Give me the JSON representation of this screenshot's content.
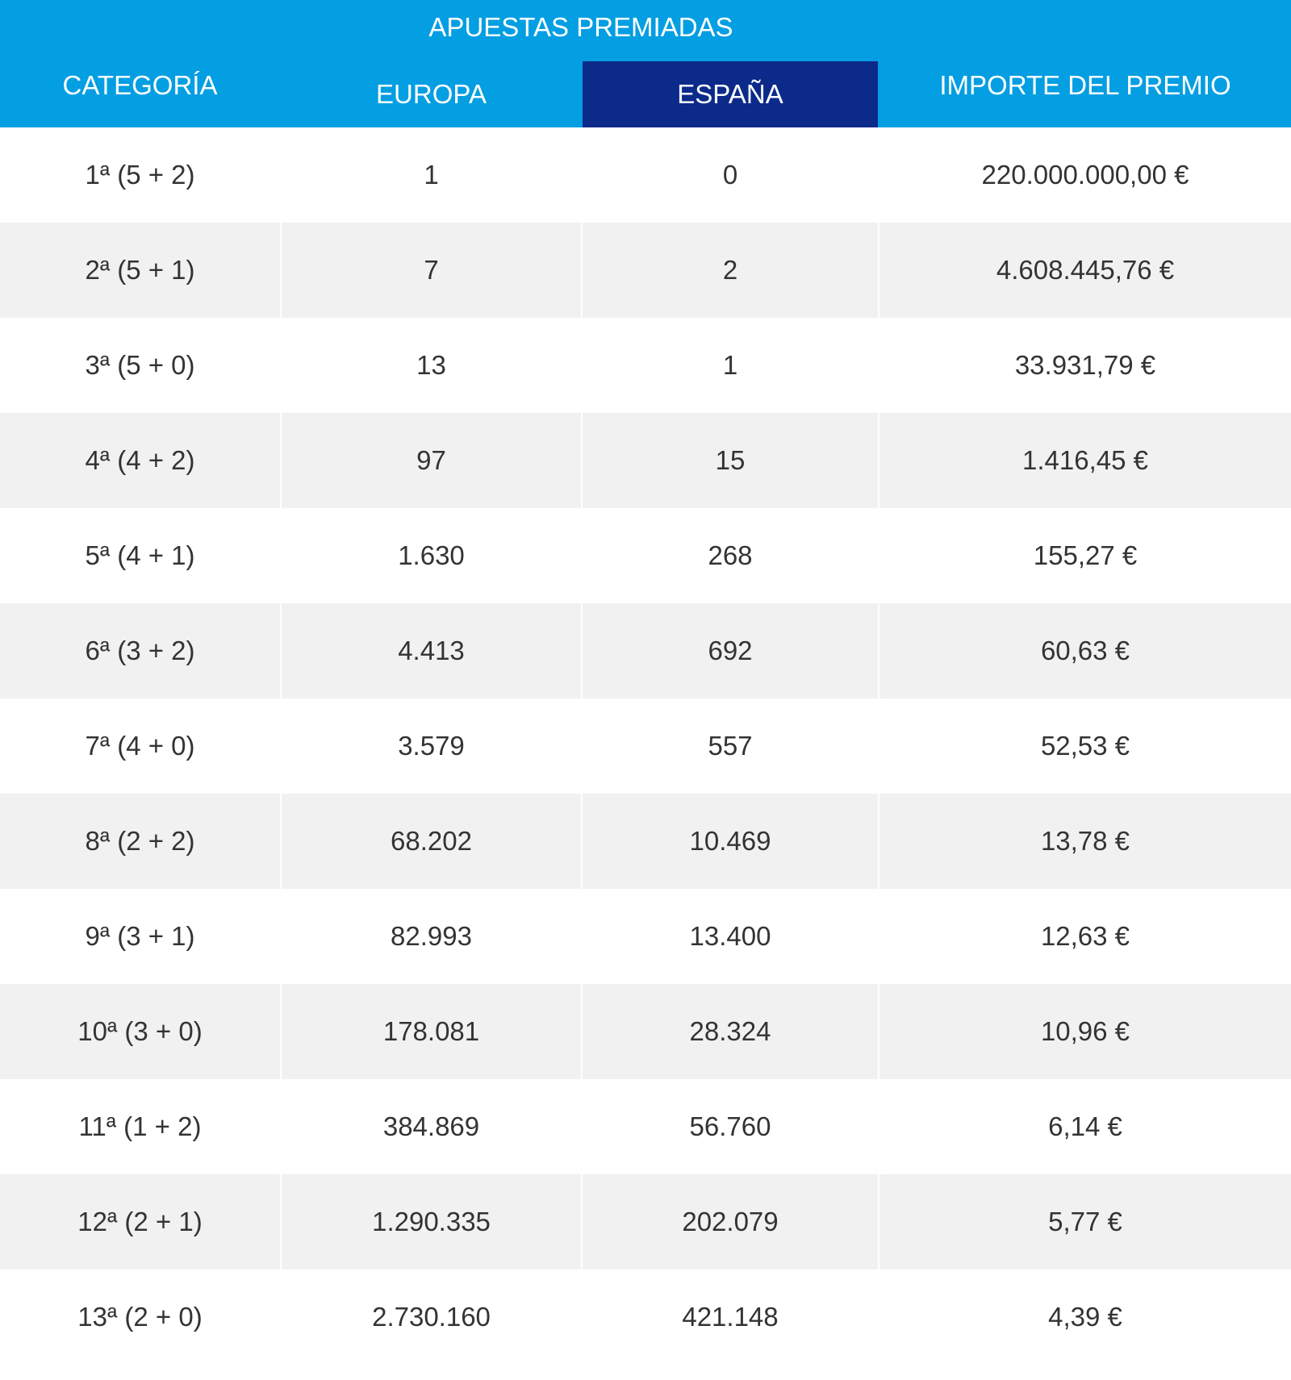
{
  "table": {
    "header": {
      "title": "APUESTAS PREMIADAS"
    },
    "columns": [
      "CATEGORÍA",
      "EUROPA",
      "ESPAÑA",
      "IMPORTE DEL PREMIO"
    ],
    "rows": [
      [
        "1ª (5 + 2)",
        "1",
        "0",
        "220.000.000,00 €"
      ],
      [
        "2ª (5 + 1)",
        "7",
        "2",
        "4.608.445,76 €"
      ],
      [
        "3ª (5 + 0)",
        "13",
        "1",
        "33.931,79 €"
      ],
      [
        "4ª (4 + 2)",
        "97",
        "15",
        "1.416,45 €"
      ],
      [
        "5ª (4 + 1)",
        "1.630",
        "268",
        "155,27 €"
      ],
      [
        "6ª (3 + 2)",
        "4.413",
        "692",
        "60,63 €"
      ],
      [
        "7ª (4 + 0)",
        "3.579",
        "557",
        "52,53 €"
      ],
      [
        "8ª (2 + 2)",
        "68.202",
        "10.469",
        "13,78 €"
      ],
      [
        "9ª (3 + 1)",
        "82.993",
        "13.400",
        "12,63 €"
      ],
      [
        "10ª (3 + 0)",
        "178.081",
        "28.324",
        "10,96 €"
      ],
      [
        "11ª (1 + 2)",
        "384.869",
        "56.760",
        "6,14 €"
      ],
      [
        "12ª (2 + 1)",
        "1.290.335",
        "202.079",
        "5,77 €"
      ],
      [
        "13ª (2 + 0)",
        "2.730.160",
        "421.148",
        "4,39 €"
      ]
    ]
  }
}
